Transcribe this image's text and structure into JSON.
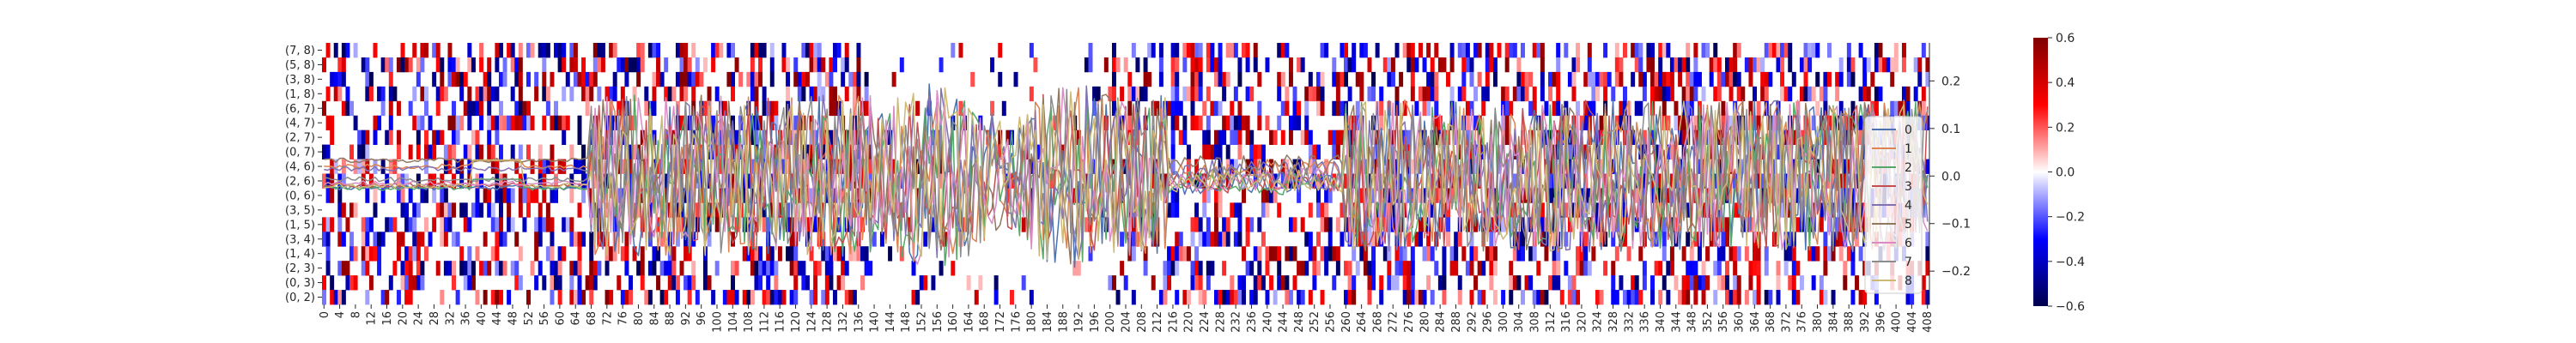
{
  "chart_data": {
    "type": "heatmap",
    "heatmap": {
      "y_categories": [
        "(7, 8)",
        "(5, 8)",
        "(3, 8)",
        "(1, 8)",
        "(6, 7)",
        "(4, 7)",
        "(2, 7)",
        "(0, 7)",
        "(4, 6)",
        "(2, 6)",
        "(0, 6)",
        "(3, 5)",
        "(1, 5)",
        "(3, 4)",
        "(1, 4)",
        "(2, 3)",
        "(0, 3)",
        "(0, 2)"
      ],
      "x_ticks": [
        0,
        4,
        8,
        12,
        16,
        20,
        24,
        28,
        32,
        36,
        40,
        44,
        48,
        52,
        56,
        60,
        64,
        68,
        72,
        76,
        80,
        84,
        88,
        92,
        96,
        100,
        104,
        108,
        112,
        116,
        120,
        124,
        128,
        132,
        136,
        140,
        144,
        148,
        152,
        156,
        160,
        164,
        168,
        172,
        176,
        180,
        184,
        188,
        192,
        196,
        200,
        204,
        208,
        212,
        216,
        220,
        224,
        228,
        232,
        236,
        240,
        244,
        248,
        252,
        256,
        260,
        264,
        268,
        272,
        276,
        280,
        284,
        288,
        292,
        296,
        300,
        304,
        308,
        312,
        316,
        320,
        324,
        328,
        332,
        336,
        340,
        344,
        348,
        352,
        356,
        360,
        364,
        368,
        372,
        376,
        380,
        384,
        388,
        392,
        396,
        400,
        404,
        408
      ],
      "x_range": [
        0,
        409
      ],
      "colormap": "seismic",
      "vmin": -0.6,
      "vmax": 0.6,
      "colorbar_ticks": [
        0.6,
        0.4,
        0.2,
        0.0,
        -0.2,
        -0.4,
        -0.6
      ],
      "colorbar_labels": [
        "0.6",
        "0.4",
        "0.2",
        "0.0",
        "−0.2",
        "−0.4",
        "−0.6"
      ]
    },
    "lines": {
      "type": "line",
      "x_range": [
        0,
        409
      ],
      "ylim": [
        -0.27,
        0.28
      ],
      "yticks": [
        0.2,
        0.1,
        0.0,
        -0.1,
        -0.2
      ],
      "ytick_labels": [
        "0.2",
        "0.1",
        "0.0",
        "−0.1",
        "−0.2"
      ],
      "legend_position": "right",
      "series": [
        {
          "name": "0",
          "color": "#4c72b0"
        },
        {
          "name": "1",
          "color": "#dd8452"
        },
        {
          "name": "2",
          "color": "#55a868"
        },
        {
          "name": "3",
          "color": "#c44e52"
        },
        {
          "name": "4",
          "color": "#8172b3"
        },
        {
          "name": "5",
          "color": "#937860"
        },
        {
          "name": "6",
          "color": "#da8bc3"
        },
        {
          "name": "7",
          "color": "#8c8c8c"
        },
        {
          "name": "8",
          "color": "#ccb974"
        }
      ]
    }
  }
}
